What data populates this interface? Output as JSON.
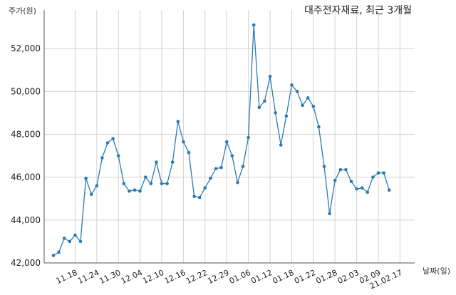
{
  "chart_data": {
    "type": "line",
    "title": "대주전자재료, 최근 3개월",
    "ylabel": "주가(원)",
    "xlabel": "날짜(일)",
    "ylim": [
      42000,
      53800
    ],
    "yticks": [
      42000,
      44000,
      46000,
      48000,
      50000,
      52000
    ],
    "ytick_labels": [
      "42,000",
      "44,000",
      "46,000",
      "48,000",
      "50,000",
      "52,000"
    ],
    "xtick_labels": [
      "11.18",
      "11.24",
      "11.30",
      "12.04",
      "12.10",
      "12.16",
      "12.22",
      "12.29",
      "01.06",
      "01.12",
      "01.18",
      "01.22",
      "01.28",
      "02.03",
      "02.09",
      "21.02.17"
    ],
    "xtick_index": [
      4,
      8,
      12,
      16,
      20,
      24,
      28,
      32,
      36,
      40,
      44,
      48,
      52,
      56,
      60,
      64
    ],
    "grid": true,
    "color": "#2b7bb3",
    "series": [
      {
        "values": [
          42350,
          42500,
          43150,
          43000,
          43300,
          43000,
          45950,
          45200,
          45600,
          46900,
          47600,
          47800,
          47000,
          45700,
          45350,
          45400,
          45350,
          46000,
          45700,
          46700,
          45700,
          45700,
          46700,
          48600,
          47650,
          47150,
          45100,
          45050,
          45500,
          45950,
          46400,
          46450,
          47650,
          47000,
          45750,
          46500,
          47850,
          53100,
          49250,
          49550,
          50700,
          49000,
          47500,
          48850,
          50300,
          50000,
          49350,
          49700,
          49300,
          48350,
          46500,
          44300,
          45850,
          46350,
          46350,
          45800,
          45450,
          45500,
          45300,
          46000,
          46200,
          46200,
          45400
        ]
      }
    ]
  }
}
